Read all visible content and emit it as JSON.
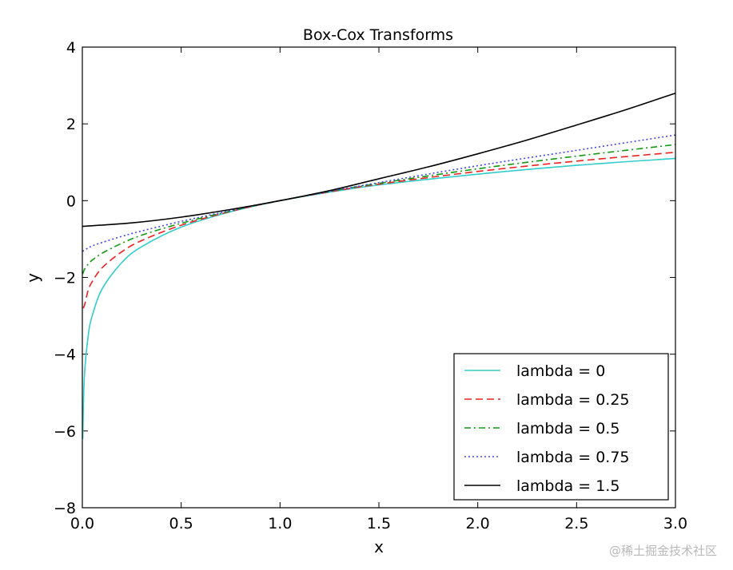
{
  "chart_data": {
    "type": "line",
    "title": "Box-Cox Transforms",
    "xlabel": "x",
    "ylabel": "y",
    "xlim": [
      0.0,
      3.0
    ],
    "ylim": [
      -8,
      4
    ],
    "xticks": [
      0.0,
      0.5,
      1.0,
      1.5,
      2.0,
      2.5,
      3.0
    ],
    "xtick_labels": [
      "0.0",
      "0.5",
      "1.0",
      "1.5",
      "2.0",
      "2.5",
      "3.0"
    ],
    "yticks": [
      -8,
      -6,
      -4,
      -2,
      0,
      2,
      4
    ],
    "ytick_labels": [
      "−8",
      "−6",
      "−4",
      "−2",
      "0",
      "2",
      "4"
    ],
    "grid": false,
    "legend_position": "lower-right",
    "series": [
      {
        "name": "lambda = 0",
        "color": "#33cccc",
        "dash": "solid",
        "x": [
          0.002,
          0.01,
          0.03,
          0.05,
          0.1,
          0.2,
          0.3,
          0.5,
          0.75,
          1.0,
          1.25,
          1.5,
          2.0,
          2.5,
          3.0
        ],
        "y": [
          -6.21,
          -4.61,
          -3.51,
          -3.0,
          -2.3,
          -1.61,
          -1.2,
          -0.69,
          -0.29,
          0.0,
          0.22,
          0.41,
          0.69,
          0.92,
          1.1
        ]
      },
      {
        "name": "lambda = 0.25",
        "color": "#ee2222",
        "dash": "dashed",
        "x": [
          0.002,
          0.01,
          0.03,
          0.05,
          0.1,
          0.2,
          0.3,
          0.5,
          0.75,
          1.0,
          1.25,
          1.5,
          2.0,
          2.5,
          3.0
        ],
        "y": [
          -2.79,
          -2.74,
          -2.33,
          -2.11,
          -1.75,
          -1.33,
          -1.04,
          -0.64,
          -0.28,
          0.0,
          0.23,
          0.43,
          0.76,
          1.03,
          1.26
        ]
      },
      {
        "name": "lambda = 0.5",
        "color": "#119911",
        "dash": "dashdot",
        "x": [
          0.002,
          0.01,
          0.03,
          0.05,
          0.1,
          0.2,
          0.3,
          0.5,
          0.75,
          1.0,
          1.25,
          1.5,
          2.0,
          2.5,
          3.0
        ],
        "y": [
          -1.91,
          -1.8,
          -1.65,
          -1.55,
          -1.37,
          -1.11,
          -0.9,
          -0.59,
          -0.27,
          0.0,
          0.24,
          0.45,
          0.83,
          1.16,
          1.46
        ]
      },
      {
        "name": "lambda = 0.75",
        "color": "#4444ee",
        "dash": "dotted",
        "x": [
          0.002,
          0.01,
          0.03,
          0.05,
          0.1,
          0.2,
          0.3,
          0.5,
          0.75,
          1.0,
          1.25,
          1.5,
          2.0,
          2.5,
          3.0
        ],
        "y": [
          -1.32,
          -1.29,
          -1.23,
          -1.18,
          -1.09,
          -0.93,
          -0.79,
          -0.54,
          -0.26,
          0.0,
          0.24,
          0.47,
          0.91,
          1.31,
          1.71
        ]
      },
      {
        "name": "lambda = 1.5",
        "color": "#000000",
        "dash": "solid",
        "x": [
          0.0,
          0.25,
          0.5,
          0.75,
          1.0,
          1.25,
          1.5,
          1.75,
          2.0,
          2.25,
          2.5,
          2.75,
          3.0
        ],
        "y": [
          -0.67,
          -0.58,
          -0.43,
          -0.23,
          0.0,
          0.26,
          0.57,
          0.88,
          1.22,
          1.58,
          1.97,
          2.37,
          2.8
        ]
      }
    ]
  },
  "watermark": "@稀土掘金技术社区"
}
